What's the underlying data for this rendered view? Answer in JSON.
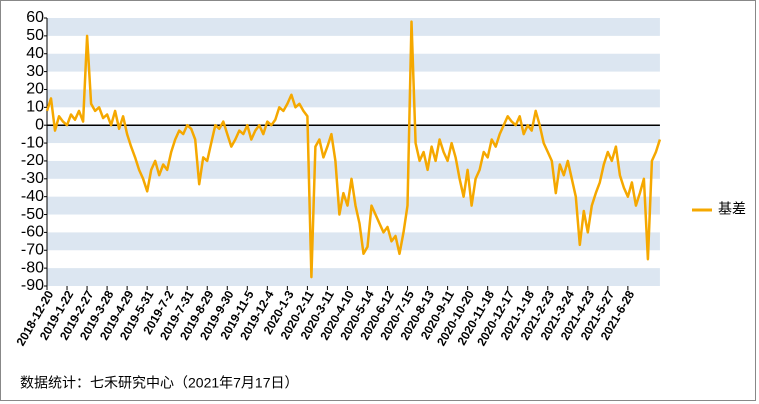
{
  "chart_data": {
    "type": "line",
    "legend": "right",
    "zero_line": true,
    "band_color": "#dce6f1",
    "source": "数据统计：七禾研究中心（2021年7月17日）",
    "categories": [
      "2018-12-20",
      null,
      null,
      null,
      null,
      "2019-1-22",
      null,
      null,
      null,
      null,
      "2019-2-27",
      null,
      null,
      null,
      null,
      "2019-3-28",
      null,
      null,
      null,
      null,
      "2019-4-29",
      null,
      null,
      null,
      null,
      "2019-5-31",
      null,
      null,
      null,
      null,
      "2019-7-2",
      null,
      null,
      null,
      null,
      "2019-7-31",
      null,
      null,
      null,
      null,
      "2019-8-29",
      null,
      null,
      null,
      null,
      "2019-9-30",
      null,
      null,
      null,
      null,
      "2019-11-5",
      null,
      null,
      null,
      null,
      "2019-12-4",
      null,
      null,
      null,
      null,
      "2020-1-3",
      null,
      null,
      null,
      null,
      "2020-2-11",
      null,
      null,
      null,
      null,
      "2020-3-11",
      null,
      null,
      null,
      null,
      "2020-4-10",
      null,
      null,
      null,
      null,
      "2020-5-14",
      null,
      null,
      null,
      null,
      "2020-6-12",
      null,
      null,
      null,
      null,
      "2020-7-15",
      null,
      null,
      null,
      null,
      "2020-8-13",
      null,
      null,
      null,
      null,
      "2020-9-11",
      null,
      null,
      null,
      null,
      "2020-10-20",
      null,
      null,
      null,
      null,
      "2020-11-18",
      null,
      null,
      null,
      null,
      "2020-12-17",
      null,
      null,
      null,
      null,
      "2021-1-18",
      null,
      null,
      null,
      null,
      "2021-2-23",
      null,
      null,
      null,
      null,
      "2021-3-24",
      null,
      null,
      null,
      null,
      "2021-4-23",
      null,
      null,
      null,
      null,
      "2021-5-27",
      null,
      null,
      null,
      null,
      "2021-6-28",
      null,
      null,
      null,
      null,
      null,
      null,
      null,
      null
    ],
    "series": [
      {
        "name": "基差",
        "color": "#f5a800",
        "values": [
          8,
          15,
          -3,
          5,
          2,
          0,
          6,
          3,
          8,
          2,
          50,
          12,
          8,
          10,
          4,
          6,
          0,
          8,
          -2,
          5,
          -5,
          -12,
          -18,
          -25,
          -30,
          -37,
          -25,
          -20,
          -28,
          -22,
          -25,
          -15,
          -8,
          -3,
          -5,
          0,
          -2,
          -8,
          -33,
          -18,
          -20,
          -10,
          0,
          -2,
          2,
          -5,
          -12,
          -8,
          -3,
          -5,
          0,
          -8,
          -3,
          0,
          -5,
          2,
          0,
          3,
          10,
          8,
          12,
          17,
          10,
          12,
          8,
          5,
          -85,
          -12,
          -8,
          -18,
          -12,
          -5,
          -20,
          -50,
          -38,
          -45,
          -30,
          -45,
          -55,
          -72,
          -68,
          -45,
          -50,
          -55,
          -60,
          -57,
          -65,
          -62,
          -72,
          -60,
          -45,
          58,
          -10,
          -20,
          -15,
          -25,
          -12,
          -20,
          -8,
          -15,
          -20,
          -10,
          -18,
          -30,
          -40,
          -25,
          -45,
          -30,
          -25,
          -15,
          -18,
          -8,
          -12,
          -5,
          0,
          5,
          2,
          0,
          5,
          -5,
          0,
          -3,
          8,
          0,
          -10,
          -15,
          -20,
          -38,
          -22,
          -28,
          -20,
          -30,
          -40,
          -67,
          -48,
          -60,
          -45,
          -38,
          -32,
          -22,
          -15,
          -20,
          -12,
          -28,
          -35,
          -40,
          -32,
          -45,
          -38,
          -30,
          -75,
          -20,
          -15,
          -8
        ]
      }
    ],
    "ylim": [
      -90,
      60
    ],
    "yticks": [
      60,
      50,
      40,
      30,
      20,
      10,
      0,
      -10,
      -20,
      -30,
      -40,
      -50,
      -60,
      -70,
      -80,
      -90
    ]
  }
}
